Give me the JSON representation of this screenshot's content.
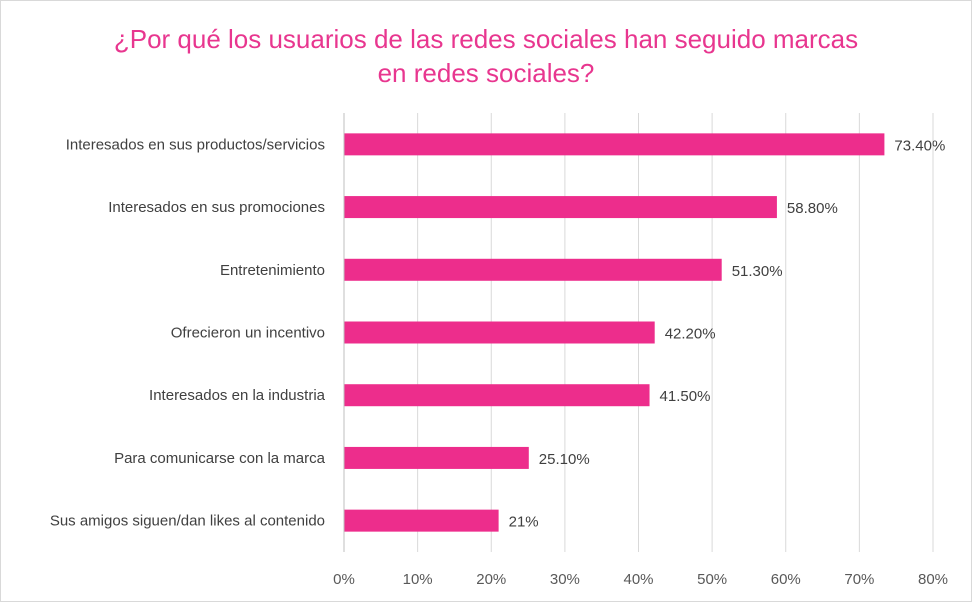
{
  "chart_data": {
    "type": "bar",
    "orientation": "horizontal",
    "title_lines": [
      "¿Por qué los usuarios de las redes sociales han seguido marcas",
      "en redes sociales?"
    ],
    "categories": [
      "Interesados en sus productos/servicios",
      "Interesados en sus promociones",
      "Entretenimiento",
      "Ofrecieron un incentivo",
      "Interesados en la industria",
      "Para comunicarse con la marca",
      "Sus amigos siguen/dan likes al contenido"
    ],
    "values": [
      73.4,
      58.8,
      51.3,
      42.2,
      41.5,
      25.1,
      21
    ],
    "value_labels": [
      "73.40%",
      "58.80%",
      "51.30%",
      "42.20%",
      "41.50%",
      "25.10%",
      "21%"
    ],
    "x_ticks": [
      "0%",
      "10%",
      "20%",
      "30%",
      "40%",
      "50%",
      "60%",
      "70%",
      "80%"
    ],
    "xlim": [
      0,
      80
    ],
    "grid": true,
    "legend": "none",
    "bar_color": "#ed2d8c",
    "title_color": "#e8368f"
  }
}
